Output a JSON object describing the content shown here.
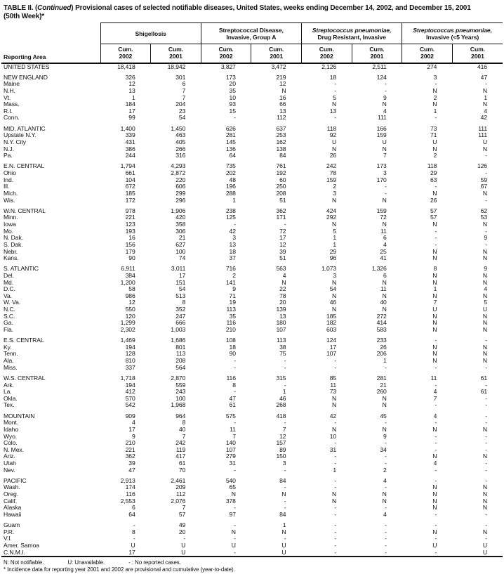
{
  "title": {
    "prefix": "TABLE II. (",
    "continued": "Continued",
    "suffix": ") Provisional cases of selected notifiable diseases, United States, weeks ending December 14, 2002, and December 15, 2001",
    "line2": "(50th Week)*"
  },
  "header": {
    "reporting_area": "Reporting Area",
    "groups": [
      {
        "line1": "Shigellosis",
        "line2": "",
        "line1_italic": false
      },
      {
        "line1": "Streptococcal Disease,",
        "line2": "Invasive, Group A",
        "line1_italic": false
      },
      {
        "line1": "Streptococcus pneumoniae,",
        "line2": "Drug Resistant, Invasive",
        "line1_italic": true
      },
      {
        "line1": "Streptococcus pneumoniae,",
        "line2": "Invasive (<5 Years)",
        "line1_italic": true
      }
    ],
    "sub": [
      [
        "Cum.",
        "2002"
      ],
      [
        "Cum.",
        "2001"
      ],
      [
        "Cum.",
        "2002"
      ],
      [
        "Cum.",
        "2001"
      ],
      [
        "Cum.",
        "2002"
      ],
      [
        "Cum.",
        "2001"
      ],
      [
        "Cum.",
        "2002"
      ],
      [
        "Cum.",
        "2001"
      ]
    ]
  },
  "table": {
    "sections": [
      {
        "rows": [
          {
            "a": "UNITED STATES",
            "v": [
              "18,418",
              "18,942",
              "3,827",
              "3,472",
              "2,126",
              "2,511",
              "274",
              "416"
            ]
          }
        ]
      },
      {
        "rows": [
          {
            "a": "NEW ENGLAND",
            "v": [
              "326",
              "301",
              "173",
              "219",
              "18",
              "124",
              "3",
              "47"
            ]
          },
          {
            "a": "Maine",
            "v": [
              "12",
              "6",
              "20",
              "12",
              "-",
              "-",
              "-",
              "-"
            ]
          },
          {
            "a": "N.H.",
            "v": [
              "13",
              "7",
              "35",
              "N",
              "-",
              "-",
              "N",
              "N"
            ]
          },
          {
            "a": "Vt.",
            "v": [
              "1",
              "7",
              "10",
              "16",
              "5",
              "9",
              "2",
              "1"
            ]
          },
          {
            "a": "Mass.",
            "v": [
              "184",
              "204",
              "93",
              "66",
              "N",
              "N",
              "N",
              "N"
            ]
          },
          {
            "a": "R.I.",
            "v": [
              "17",
              "23",
              "15",
              "13",
              "13",
              "4",
              "1",
              "4"
            ]
          },
          {
            "a": "Conn.",
            "v": [
              "99",
              "54",
              "-",
              "112",
              "-",
              "111",
              "-",
              "42"
            ]
          }
        ]
      },
      {
        "rows": [
          {
            "a": "MID. ATLANTIC",
            "v": [
              "1,400",
              "1,450",
              "626",
              "637",
              "118",
              "166",
              "73",
              "111"
            ]
          },
          {
            "a": "Upstate N.Y.",
            "v": [
              "339",
              "463",
              "281",
              "253",
              "92",
              "159",
              "71",
              "111"
            ]
          },
          {
            "a": "N.Y. City",
            "v": [
              "431",
              "405",
              "145",
              "162",
              "U",
              "U",
              "U",
              "U"
            ]
          },
          {
            "a": "N.J.",
            "v": [
              "386",
              "266",
              "136",
              "138",
              "N",
              "N",
              "N",
              "N"
            ]
          },
          {
            "a": "Pa.",
            "v": [
              "244",
              "316",
              "64",
              "84",
              "26",
              "7",
              "2",
              "-"
            ]
          }
        ]
      },
      {
        "rows": [
          {
            "a": "E.N. CENTRAL",
            "v": [
              "1,794",
              "4,293",
              "735",
              "761",
              "242",
              "173",
              "118",
              "126"
            ]
          },
          {
            "a": "Ohio",
            "v": [
              "661",
              "2,872",
              "202",
              "192",
              "78",
              "3",
              "29",
              "-"
            ]
          },
          {
            "a": "Ind.",
            "v": [
              "104",
              "220",
              "48",
              "60",
              "159",
              "170",
              "63",
              "59"
            ]
          },
          {
            "a": "Ill.",
            "v": [
              "672",
              "606",
              "196",
              "250",
              "2",
              "-",
              "-",
              "67"
            ]
          },
          {
            "a": "Mich.",
            "v": [
              "185",
              "299",
              "288",
              "208",
              "3",
              "-",
              "N",
              "N"
            ]
          },
          {
            "a": "Wis.",
            "v": [
              "172",
              "296",
              "1",
              "51",
              "N",
              "N",
              "26",
              "-"
            ]
          }
        ]
      },
      {
        "rows": [
          {
            "a": "W.N. CENTRAL",
            "v": [
              "978",
              "1,906",
              "238",
              "362",
              "424",
              "159",
              "57",
              "62"
            ]
          },
          {
            "a": "Minn.",
            "v": [
              "221",
              "420",
              "125",
              "171",
              "292",
              "72",
              "57",
              "53"
            ]
          },
          {
            "a": "Iowa",
            "v": [
              "123",
              "358",
              "-",
              "-",
              "N",
              "N",
              "N",
              "N"
            ]
          },
          {
            "a": "Mo.",
            "v": [
              "193",
              "306",
              "42",
              "72",
              "5",
              "11",
              "-",
              "-"
            ]
          },
          {
            "a": "N. Dak.",
            "v": [
              "16",
              "21",
              "3",
              "17",
              "1",
              "6",
              "-",
              "9"
            ]
          },
          {
            "a": "S. Dak.",
            "v": [
              "156",
              "627",
              "13",
              "12",
              "1",
              "4",
              "-",
              "-"
            ]
          },
          {
            "a": "Nebr.",
            "v": [
              "179",
              "100",
              "18",
              "39",
              "29",
              "25",
              "N",
              "N"
            ]
          },
          {
            "a": "Kans.",
            "v": [
              "90",
              "74",
              "37",
              "51",
              "96",
              "41",
              "N",
              "N"
            ]
          }
        ]
      },
      {
        "rows": [
          {
            "a": "S. ATLANTIC",
            "v": [
              "6,911",
              "3,011",
              "716",
              "563",
              "1,073",
              "1,326",
              "8",
              "9"
            ]
          },
          {
            "a": "Del.",
            "v": [
              "384",
              "17",
              "2",
              "4",
              "3",
              "6",
              "N",
              "N"
            ]
          },
          {
            "a": "Md.",
            "v": [
              "1,200",
              "151",
              "141",
              "N",
              "N",
              "N",
              "N",
              "N"
            ]
          },
          {
            "a": "D.C.",
            "v": [
              "58",
              "54",
              "9",
              "22",
              "54",
              "11",
              "1",
              "4"
            ]
          },
          {
            "a": "Va.",
            "v": [
              "986",
              "513",
              "71",
              "78",
              "N",
              "N",
              "N",
              "N"
            ]
          },
          {
            "a": "W. Va.",
            "v": [
              "12",
              "8",
              "19",
              "20",
              "46",
              "40",
              "7",
              "5"
            ]
          },
          {
            "a": "N.C.",
            "v": [
              "550",
              "352",
              "113",
              "139",
              "N",
              "N",
              "U",
              "U"
            ]
          },
          {
            "a": "S.C.",
            "v": [
              "120",
              "247",
              "35",
              "13",
              "185",
              "272",
              "N",
              "N"
            ]
          },
          {
            "a": "Ga.",
            "v": [
              "1,299",
              "666",
              "116",
              "180",
              "182",
              "414",
              "N",
              "N"
            ]
          },
          {
            "a": "Fla.",
            "v": [
              "2,302",
              "1,003",
              "210",
              "107",
              "603",
              "583",
              "N",
              "N"
            ]
          }
        ]
      },
      {
        "rows": [
          {
            "a": "E.S. CENTRAL",
            "v": [
              "1,469",
              "1,686",
              "108",
              "113",
              "124",
              "233",
              "-",
              "-"
            ]
          },
          {
            "a": "Ky.",
            "v": [
              "194",
              "801",
              "18",
              "38",
              "17",
              "26",
              "N",
              "N"
            ]
          },
          {
            "a": "Tenn.",
            "v": [
              "128",
              "113",
              "90",
              "75",
              "107",
              "206",
              "N",
              "N"
            ]
          },
          {
            "a": "Ala.",
            "v": [
              "810",
              "208",
              "-",
              "-",
              "-",
              "1",
              "N",
              "N"
            ]
          },
          {
            "a": "Miss.",
            "v": [
              "337",
              "564",
              "-",
              "-",
              "-",
              "-",
              "-",
              "-"
            ]
          }
        ]
      },
      {
        "rows": [
          {
            "a": "W.S. CENTRAL",
            "v": [
              "1,718",
              "2,870",
              "116",
              "315",
              "85",
              "281",
              "11",
              "61"
            ]
          },
          {
            "a": "Ark.",
            "v": [
              "194",
              "559",
              "8",
              "-",
              "11",
              "21",
              "-",
              "-"
            ]
          },
          {
            "a": "La.",
            "v": [
              "412",
              "243",
              "-",
              "1",
              "73",
              "260",
              "4",
              "61"
            ]
          },
          {
            "a": "Okla.",
            "v": [
              "570",
              "100",
              "47",
              "46",
              "N",
              "N",
              "7",
              "-"
            ]
          },
          {
            "a": "Tex.",
            "v": [
              "542",
              "1,968",
              "61",
              "268",
              "N",
              "N",
              "-",
              "-"
            ]
          }
        ]
      },
      {
        "rows": [
          {
            "a": "MOUNTAIN",
            "v": [
              "909",
              "964",
              "575",
              "418",
              "42",
              "45",
              "4",
              "-"
            ]
          },
          {
            "a": "Mont.",
            "v": [
              "4",
              "8",
              "-",
              "-",
              "-",
              "-",
              "-",
              "-"
            ]
          },
          {
            "a": "Idaho",
            "v": [
              "17",
              "40",
              "11",
              "7",
              "N",
              "N",
              "N",
              "N"
            ]
          },
          {
            "a": "Wyo.",
            "v": [
              "9",
              "7",
              "7",
              "12",
              "10",
              "9",
              "-",
              "-"
            ]
          },
          {
            "a": "Colo.",
            "v": [
              "210",
              "242",
              "140",
              "157",
              "-",
              "-",
              "-",
              "-"
            ]
          },
          {
            "a": "N. Mex.",
            "v": [
              "221",
              "119",
              "107",
              "89",
              "31",
              "34",
              "-",
              "-"
            ]
          },
          {
            "a": "Ariz.",
            "v": [
              "362",
              "417",
              "279",
              "150",
              "-",
              "-",
              "N",
              "N"
            ]
          },
          {
            "a": "Utah",
            "v": [
              "39",
              "61",
              "31",
              "3",
              "-",
              "-",
              "4",
              "-"
            ]
          },
          {
            "a": "Nev.",
            "v": [
              "47",
              "70",
              "-",
              "-",
              "1",
              "2",
              "-",
              "-"
            ]
          }
        ]
      },
      {
        "rows": [
          {
            "a": "PACIFIC",
            "v": [
              "2,913",
              "2,461",
              "540",
              "84",
              "-",
              "4",
              "-",
              "-"
            ]
          },
          {
            "a": "Wash.",
            "v": [
              "174",
              "209",
              "65",
              "-",
              "-",
              "-",
              "N",
              "N"
            ]
          },
          {
            "a": "Oreg.",
            "v": [
              "116",
              "112",
              "N",
              "N",
              "N",
              "N",
              "N",
              "N"
            ]
          },
          {
            "a": "Calif.",
            "v": [
              "2,553",
              "2,076",
              "378",
              "-",
              "N",
              "N",
              "N",
              "N"
            ]
          },
          {
            "a": "Alaska",
            "v": [
              "6",
              "7",
              "-",
              "-",
              "-",
              "-",
              "N",
              "N"
            ]
          },
          {
            "a": "Hawaii",
            "v": [
              "64",
              "57",
              "97",
              "84",
              "-",
              "4",
              "-",
              "-"
            ]
          }
        ]
      },
      {
        "rows": [
          {
            "a": "Guam",
            "v": [
              "-",
              "49",
              "-",
              "1",
              "-",
              "-",
              "-",
              "-"
            ]
          },
          {
            "a": "P.R.",
            "v": [
              "8",
              "20",
              "N",
              "N",
              "-",
              "-",
              "N",
              "N"
            ]
          },
          {
            "a": "V.I.",
            "v": [
              "-",
              "-",
              "-",
              "-",
              "-",
              "-",
              "-",
              "-"
            ]
          },
          {
            "a": "Amer. Samoa",
            "v": [
              "U",
              "U",
              "U",
              "U",
              "-",
              "-",
              "U",
              "U"
            ]
          },
          {
            "a": "C.N.M.I.",
            "v": [
              "17",
              "U",
              "-",
              "U",
              "-",
              "-",
              "-",
              "U"
            ]
          }
        ]
      }
    ]
  },
  "footnotes": {
    "line1": [
      "N: Not notifiable.",
      "U: Unavailable.",
      "- : No reported cases."
    ],
    "line2": "* Incidence data for reporting year 2001 and 2002 are provisional and cumulative (year-to-date)."
  }
}
